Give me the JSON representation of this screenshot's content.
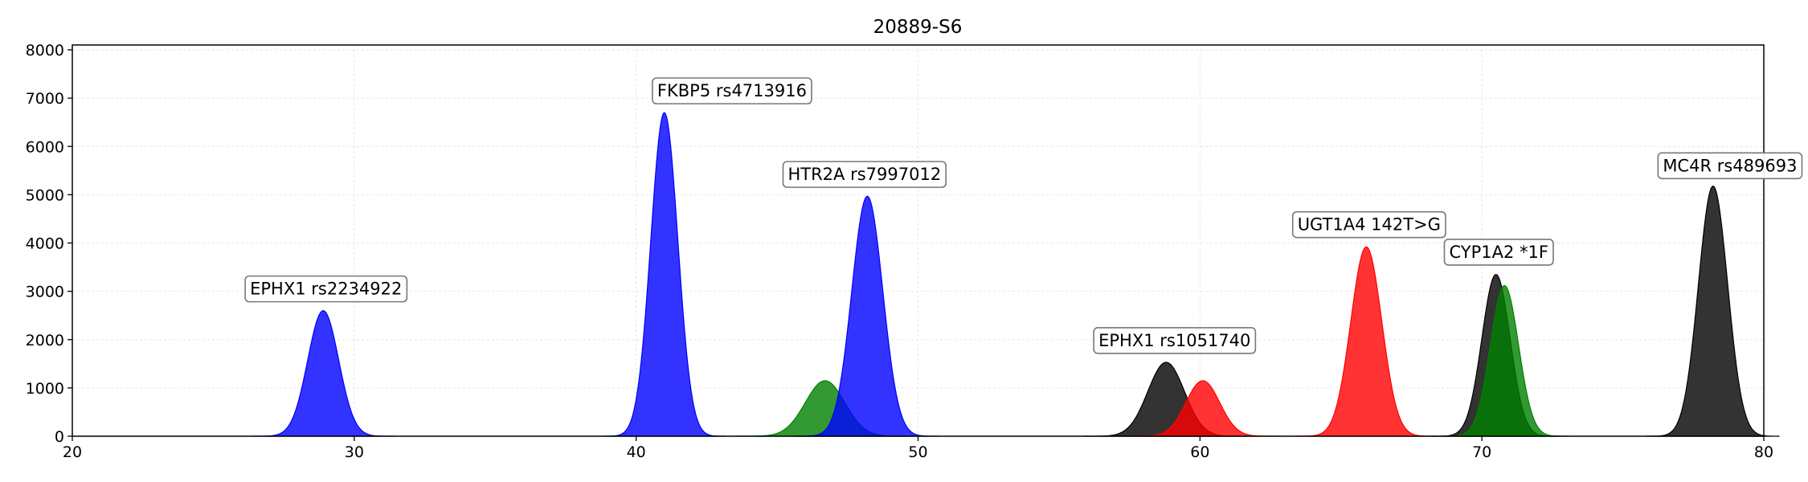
{
  "chart_data": {
    "type": "area",
    "title": "20889-S6",
    "xlabel": "",
    "ylabel": "",
    "xlim": [
      20,
      80
    ],
    "ylim": [
      0,
      8100
    ],
    "xticks": [
      20,
      30,
      40,
      50,
      60,
      70,
      80
    ],
    "yticks": [
      0,
      1000,
      2000,
      3000,
      4000,
      5000,
      6000,
      7000,
      8000
    ],
    "grid": true,
    "peaks": [
      {
        "center": 28.9,
        "height": 2600,
        "sigma": 0.55,
        "color": "#0000ff"
      },
      {
        "center": 41.0,
        "height": 6700,
        "sigma": 0.48,
        "color": "#0000ff"
      },
      {
        "center": 46.7,
        "height": 1150,
        "sigma": 0.7,
        "color": "#008000"
      },
      {
        "center": 48.2,
        "height": 4970,
        "sigma": 0.55,
        "color": "#0000ff"
      },
      {
        "center": 58.8,
        "height": 1530,
        "sigma": 0.65,
        "color": "#000000"
      },
      {
        "center": 60.1,
        "height": 1150,
        "sigma": 0.6,
        "color": "#ff0000"
      },
      {
        "center": 65.9,
        "height": 3920,
        "sigma": 0.55,
        "color": "#ff0000"
      },
      {
        "center": 70.5,
        "height": 3350,
        "sigma": 0.5,
        "color": "#000000"
      },
      {
        "center": 70.8,
        "height": 3120,
        "sigma": 0.5,
        "color": "#008000"
      },
      {
        "center": 78.2,
        "height": 5180,
        "sigma": 0.52,
        "color": "#000000"
      }
    ],
    "annotations": [
      {
        "text": "EPHX1 rs2234922",
        "x": 29.0,
        "y": 3050
      },
      {
        "text": "FKBP5 rs4713916",
        "x": 43.4,
        "y": 7150
      },
      {
        "text": "HTR2A rs7997012",
        "x": 48.1,
        "y": 5420
      },
      {
        "text": "EPHX1 rs1051740",
        "x": 59.1,
        "y": 1980
      },
      {
        "text": "UGT1A4 142T>G",
        "x": 66.0,
        "y": 4380
      },
      {
        "text": "CYP1A2 *1F",
        "x": 70.6,
        "y": 3810
      },
      {
        "text": "MC4R rs489693",
        "x": 78.8,
        "y": 5600
      }
    ]
  }
}
